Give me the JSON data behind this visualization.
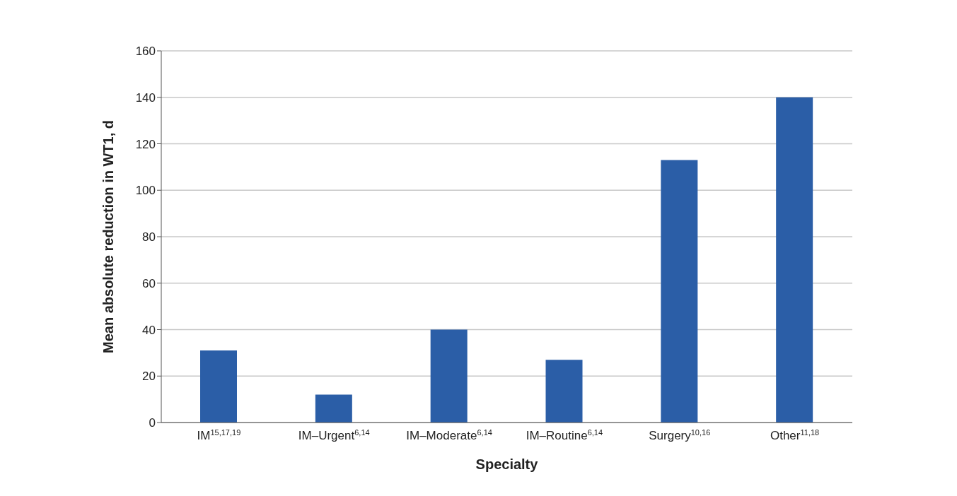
{
  "chart_data": {
    "type": "bar",
    "xlabel": "Specialty",
    "ylabel": "Mean absolute reduction in WT1, d",
    "categories": [
      "IM$^{15,17,19}$",
      "IM–Urgent$^{6,14}$",
      "IM–Moderate$^{6,14}$",
      "IM–Routine$^{6,14}$",
      "Surgery$^{10,16}$",
      "Other$^{11,18}$"
    ],
    "values": [
      31,
      12,
      40,
      27,
      113,
      140
    ],
    "color": "#2b5ea7",
    "ylim": [
      0,
      160
    ],
    "yticks": [
      0,
      20,
      40,
      60,
      80,
      100,
      120,
      140,
      160
    ],
    "grid": "y"
  }
}
